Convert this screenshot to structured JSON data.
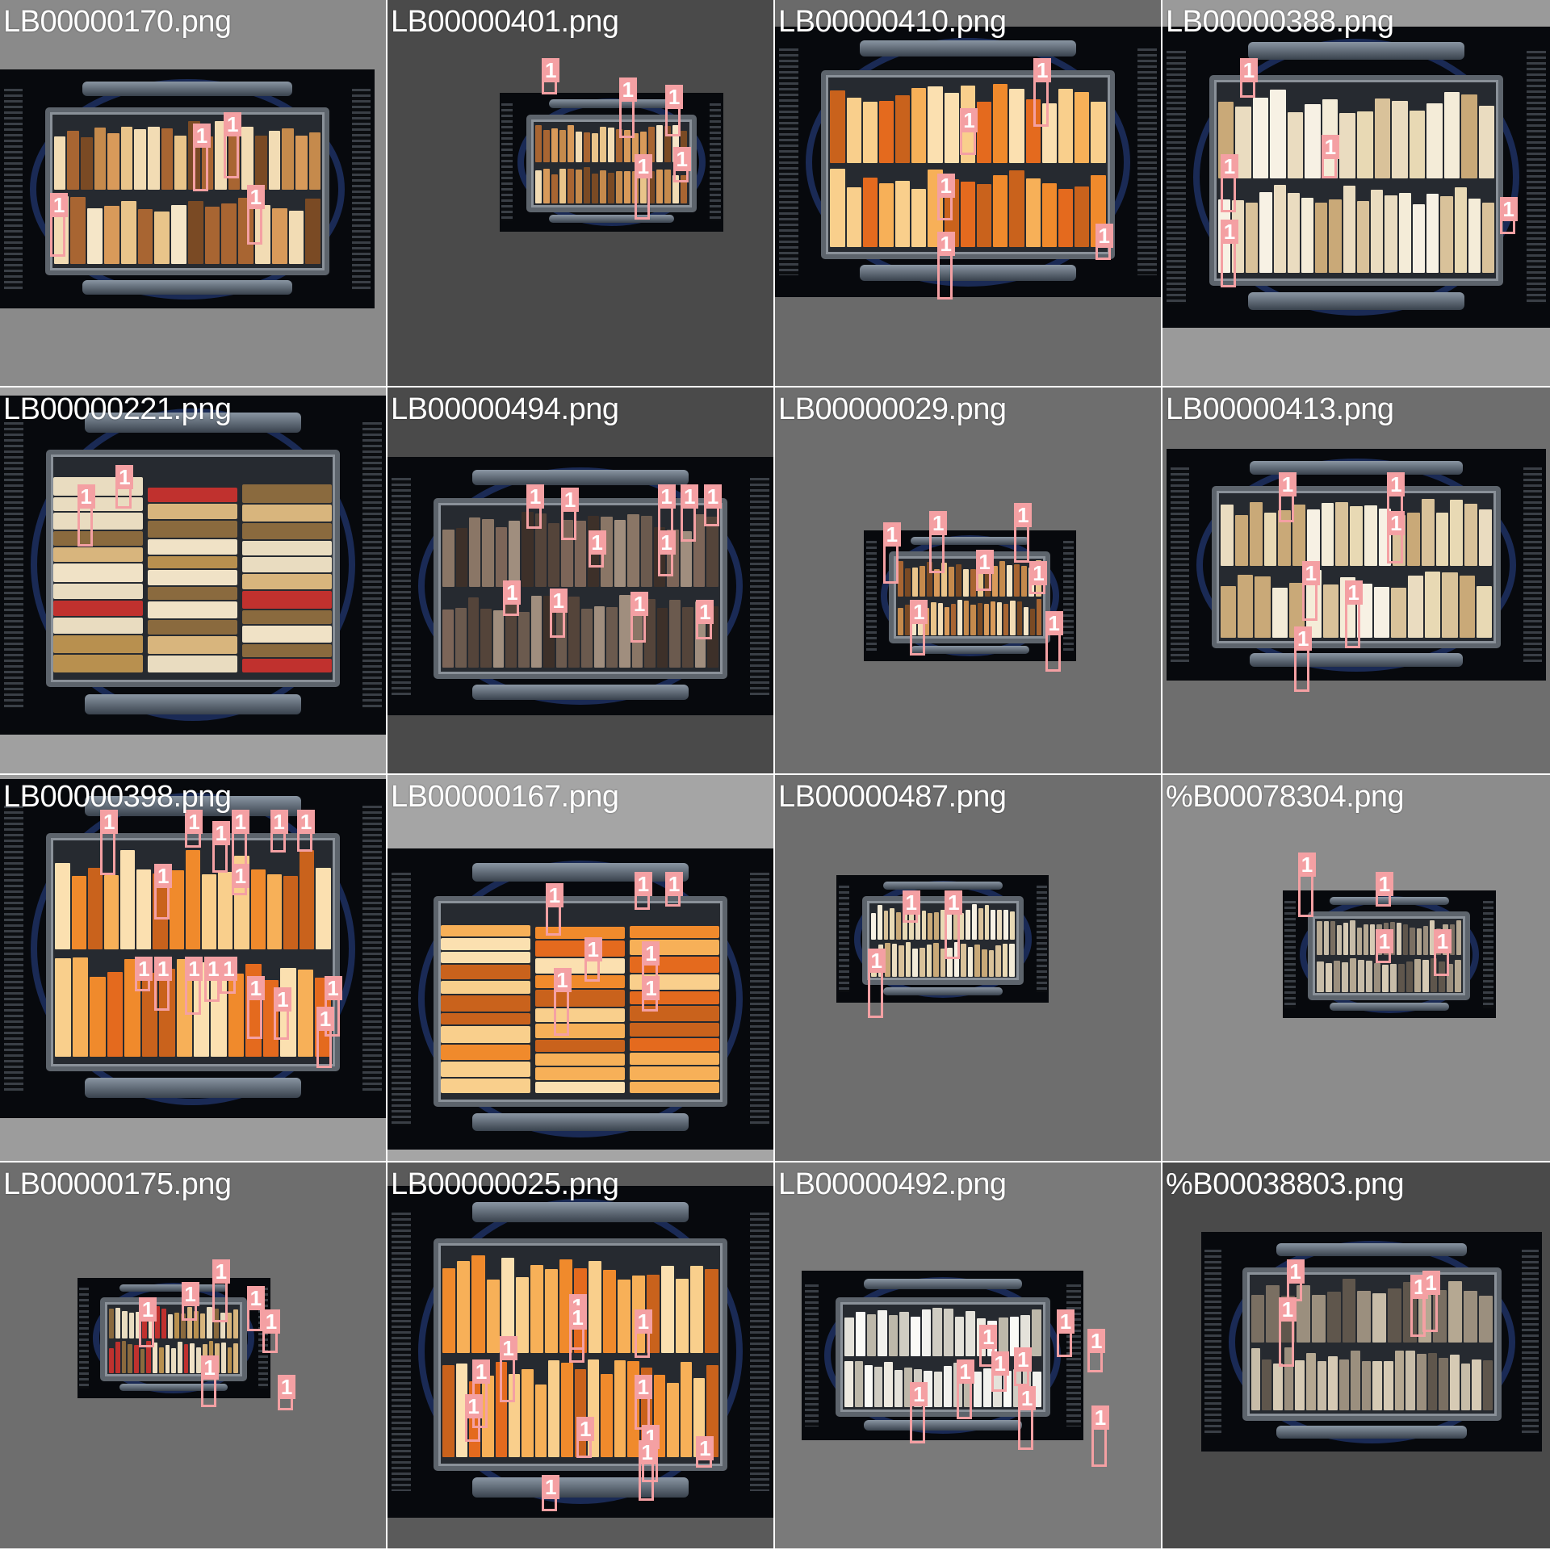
{
  "grid": {
    "cells": [
      {
        "title": "LB00000170.png",
        "bg": "#8a8a8a",
        "theme": "warm",
        "layout": "shelves"
      },
      {
        "title": "LB00000401.png",
        "bg": "#4a4a4a",
        "theme": "warm",
        "layout": "shelves"
      },
      {
        "title": "LB00000410.png",
        "bg": "#6a6a6a",
        "theme": "orange",
        "layout": "shelves"
      },
      {
        "title": "LB00000388.png",
        "bg": "#9a9a9a",
        "theme": "cream",
        "layout": "shelves"
      },
      {
        "title": "LB00000221.png",
        "bg": "#a0a0a0",
        "theme": "mixed",
        "layout": "stacks"
      },
      {
        "title": "LB00000494.png",
        "bg": "#4a4a4a",
        "theme": "brown",
        "layout": "shelves"
      },
      {
        "title": "LB00000029.png",
        "bg": "#6e6e6e",
        "theme": "warm",
        "layout": "shelves"
      },
      {
        "title": "LB00000413.png",
        "bg": "#6e6e6e",
        "theme": "cream",
        "layout": "shelves"
      },
      {
        "title": "LB00000398.png",
        "bg": "#9c9c9c",
        "theme": "orange",
        "layout": "shelves"
      },
      {
        "title": "LB00000167.png",
        "bg": "#a5a5a5",
        "theme": "orange",
        "layout": "stacks"
      },
      {
        "title": "LB00000487.png",
        "bg": "#6e6e6e",
        "theme": "cream",
        "layout": "shelves"
      },
      {
        "title": "%B00078304.png",
        "bg": "#8c8c8c",
        "theme": "gray",
        "layout": "shelves"
      },
      {
        "title": "LB00000175.png",
        "bg": "#6e6e6e",
        "theme": "mixed",
        "layout": "shelves"
      },
      {
        "title": "LB00000025.png",
        "bg": "#5a5a5a",
        "theme": "orange",
        "layout": "shelves"
      },
      {
        "title": "LB00000492.png",
        "bg": "#7a7a7a",
        "theme": "white",
        "layout": "shelves"
      },
      {
        "title": "%B00038803.png",
        "bg": "#4a4a4a",
        "theme": "gray",
        "layout": "shelves"
      }
    ],
    "marker_label": "1",
    "marker_color": "#f4a0a3"
  }
}
